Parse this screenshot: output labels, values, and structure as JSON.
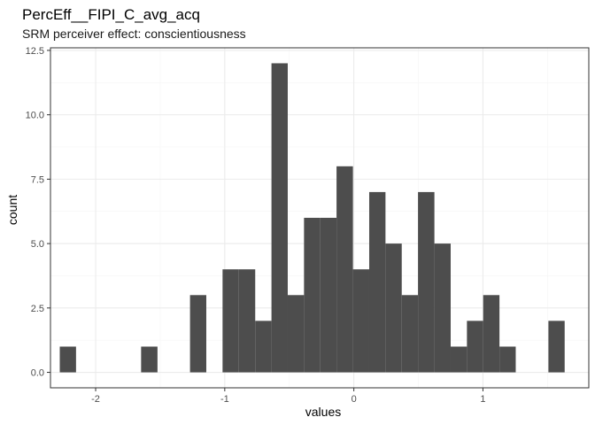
{
  "chart_data": {
    "type": "bar",
    "title": "PercEff__FIPI_C_avg_acq",
    "subtitle": "SRM perceiver effect: conscientiousness",
    "xlabel": "values",
    "ylabel": "count",
    "xlim": [
      -2.35,
      1.82
    ],
    "ylim": [
      -0.6,
      12.6
    ],
    "x_ticks": [
      -2,
      -1,
      0,
      1
    ],
    "y_ticks": [
      0.0,
      2.5,
      5.0,
      7.5,
      10.0,
      12.5
    ],
    "x_tick_labels": [
      "-2",
      "-1",
      "0",
      "1"
    ],
    "y_tick_labels": [
      "0.0",
      "2.5",
      "5.0",
      "7.5",
      "10.0",
      "12.5"
    ],
    "grid": true,
    "bin_width": 0.1262,
    "bins": [
      {
        "x0": -2.278,
        "x1": -2.152,
        "count": 1
      },
      {
        "x0": -2.152,
        "x1": -2.026,
        "count": 0
      },
      {
        "x0": -2.026,
        "x1": -1.9,
        "count": 0
      },
      {
        "x0": -1.9,
        "x1": -1.774,
        "count": 0
      },
      {
        "x0": -1.774,
        "x1": -1.648,
        "count": 0
      },
      {
        "x0": -1.648,
        "x1": -1.521,
        "count": 1
      },
      {
        "x0": -1.521,
        "x1": -1.395,
        "count": 0
      },
      {
        "x0": -1.395,
        "x1": -1.269,
        "count": 0
      },
      {
        "x0": -1.269,
        "x1": -1.143,
        "count": 3
      },
      {
        "x0": -1.143,
        "x1": -1.017,
        "count": 0
      },
      {
        "x0": -1.017,
        "x1": -0.891,
        "count": 4
      },
      {
        "x0": -0.891,
        "x1": -0.764,
        "count": 4
      },
      {
        "x0": -0.764,
        "x1": -0.638,
        "count": 2
      },
      {
        "x0": -0.638,
        "x1": -0.512,
        "count": 12
      },
      {
        "x0": -0.512,
        "x1": -0.386,
        "count": 3
      },
      {
        "x0": -0.386,
        "x1": -0.26,
        "count": 6
      },
      {
        "x0": -0.26,
        "x1": -0.134,
        "count": 6
      },
      {
        "x0": -0.134,
        "x1": -0.007,
        "count": 8
      },
      {
        "x0": -0.007,
        "x1": 0.119,
        "count": 4
      },
      {
        "x0": 0.119,
        "x1": 0.245,
        "count": 7
      },
      {
        "x0": 0.245,
        "x1": 0.371,
        "count": 5
      },
      {
        "x0": 0.371,
        "x1": 0.497,
        "count": 3
      },
      {
        "x0": 0.497,
        "x1": 0.624,
        "count": 7
      },
      {
        "x0": 0.624,
        "x1": 0.75,
        "count": 5
      },
      {
        "x0": 0.75,
        "x1": 0.876,
        "count": 1
      },
      {
        "x0": 0.876,
        "x1": 1.002,
        "count": 2
      },
      {
        "x0": 1.002,
        "x1": 1.128,
        "count": 3
      },
      {
        "x0": 1.128,
        "x1": 1.254,
        "count": 1
      },
      {
        "x0": 1.254,
        "x1": 1.381,
        "count": 0
      },
      {
        "x0": 1.381,
        "x1": 1.507,
        "count": 0
      },
      {
        "x0": 1.507,
        "x1": 1.633,
        "count": 2
      }
    ],
    "colors": {
      "bar": "#4d4d4d",
      "panel_border": "#333333",
      "grid_major": "#ebebeb",
      "grid_minor": "#f5f5f5",
      "tick_text": "#4d4d4d"
    }
  }
}
